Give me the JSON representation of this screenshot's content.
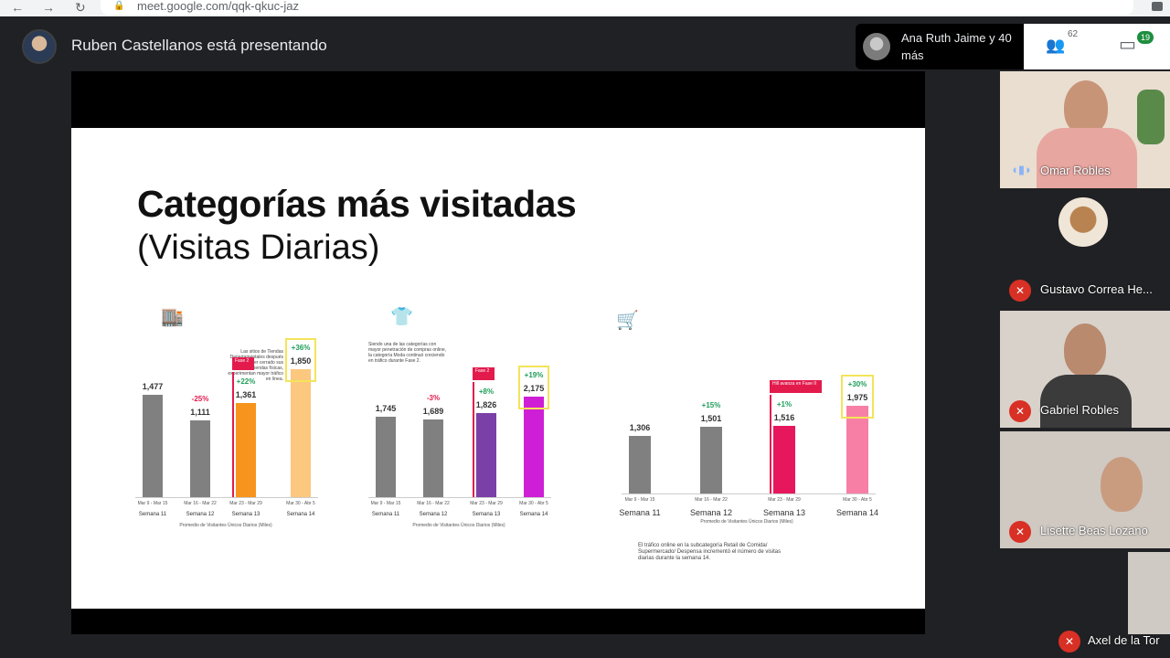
{
  "browser": {
    "url": "meet.google.com/qqk-qkuc-jaz",
    "back_icon": "←",
    "forward_icon": "→",
    "reload_icon": "↻",
    "lock_icon": "🔒"
  },
  "meet": {
    "presenter_text": "Ruben Castellanos está presentando",
    "participants_summary": "Ana Ruth Jaime y 40 más",
    "people_count": "62",
    "chat_count": "19",
    "people_icon": "👥",
    "chat_icon": "▭"
  },
  "slide": {
    "title": "Categorías más visitadas",
    "subtitle": "(Visitas Diarias)",
    "panels": [
      {
        "category": "Tiendas Departamentales",
        "icon": "store-icon",
        "color": "#f7941d",
        "note": "Las sitios de Tiendas Departamentales después de haber cerrado sus tiendas físicas, experimentan mayor tráfico en línea.",
        "values": [
          "1,477",
          "1,111",
          "1,361",
          "1,850"
        ],
        "changes": [
          "",
          "-25%",
          "+22%",
          "+36%"
        ],
        "dates": [
          "Mar 9 - Mar 15",
          "Mar 16 - Mar 22",
          "Mar 23 - Mar 29",
          "Mar 30 - Abr 5"
        ],
        "weeks": [
          "Semana 11",
          "Semana 12",
          "Semana 13",
          "Semana 14"
        ],
        "flag": "Fase 2",
        "axis_note": "Promedio de Visitantes Únicos Diarios (Miles)"
      },
      {
        "category": "Moda",
        "icon": "shirt-icon",
        "color": "#7b3fa8",
        "note": "Siendo una de las categorías con mayor penetración de compras online, la categoría Moda continuó creciendo en tráfico durante Fase 2.",
        "values": [
          "1,745",
          "1,689",
          "1,826",
          "2,175"
        ],
        "changes": [
          "",
          "-3%",
          "+8%",
          "+19%"
        ],
        "dates": [
          "Mar 9 - Mar 15",
          "Mar 16 - Mar 22",
          "Mar 23 - Mar 29",
          "Mar 30 - Abr 5"
        ],
        "weeks": [
          "Semana 11",
          "Semana 12",
          "Semana 13",
          "Semana 14"
        ],
        "flag": "Fase 2",
        "axis_note": "Promedio de Visitantes Únicos Diarios (Miles)"
      },
      {
        "category": "COMIDA / SUPERMERCADO / DESPENSA",
        "icon": "cart-icon",
        "color": "#e6175c",
        "note": "El tráfico online en la subcategoría Retail de Comida/ Supermercado/ Despensa incrementó el número de visitas diarias durante la semana 14.",
        "values": [
          "1,306",
          "1,501",
          "1,516",
          "1,975"
        ],
        "changes": [
          "",
          "+15%",
          "+1%",
          "+30%"
        ],
        "dates": [
          "Mar 9 - Mar 15",
          "Mar 16 - Mar 22",
          "Mar 23 - Mar 29",
          "Mar 30 - Abr 5"
        ],
        "weeks": [
          "Semana 11",
          "Semana 12",
          "Semana 13",
          "Semana 14"
        ],
        "flag": "Hill avanza en Fase II",
        "axis_note": "Promedio de Visitantes Únicos Diarios (Miles)"
      }
    ]
  },
  "tiles": [
    {
      "name": "Omar Robles",
      "muted": false
    },
    {
      "name": "Gustavo Correa He...",
      "muted": true
    },
    {
      "name": "Gabriel Robles",
      "muted": true
    },
    {
      "name": "Lisette Beas Lozano",
      "muted": true
    },
    {
      "name": "Axel de la Tor",
      "muted": true
    }
  ],
  "chart_data": [
    {
      "type": "bar",
      "title": "Tiendas Departamentales",
      "categories": [
        "Semana 11",
        "Semana 12",
        "Semana 13",
        "Semana 14"
      ],
      "values": [
        1477,
        1111,
        1361,
        1850
      ],
      "colors": [
        "#808080",
        "#808080",
        "#f7941d",
        "#fcc77e"
      ]
    },
    {
      "type": "bar",
      "title": "Moda",
      "categories": [
        "Semana 11",
        "Semana 12",
        "Semana 13",
        "Semana 14"
      ],
      "values": [
        1745,
        1689,
        1826,
        2175
      ],
      "colors": [
        "#808080",
        "#808080",
        "#7b3fa8",
        "#cf1fd6"
      ]
    },
    {
      "type": "bar",
      "title": "COMIDA / SUPERMERCADO / DESPENSA",
      "categories": [
        "Semana 11",
        "Semana 12",
        "Semana 13",
        "Semana 14"
      ],
      "values": [
        1306,
        1501,
        1516,
        1975
      ],
      "colors": [
        "#808080",
        "#808080",
        "#e6175c",
        "#f77fa6"
      ]
    }
  ]
}
